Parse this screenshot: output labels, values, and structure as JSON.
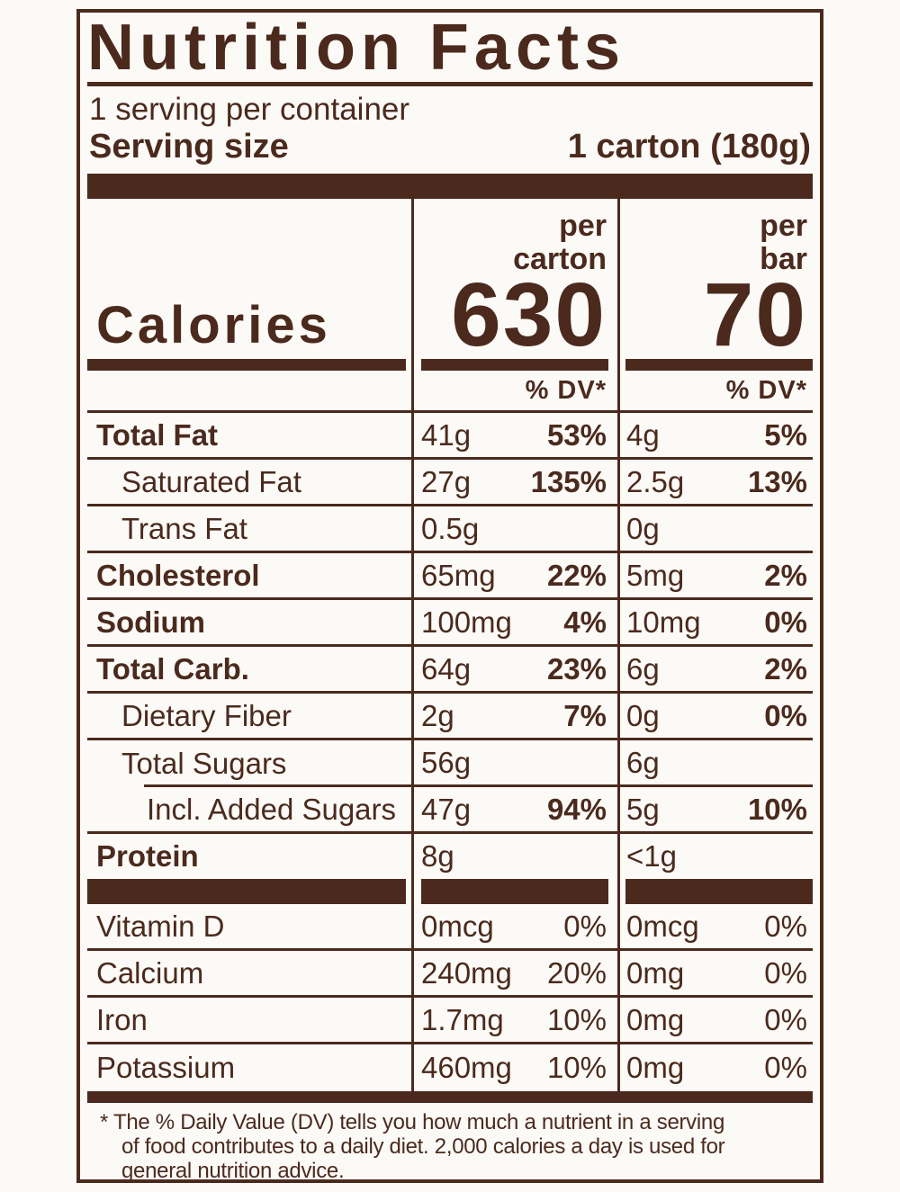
{
  "colors": {
    "text_brown": "#4B2A1D",
    "background": "#FCFAF7"
  },
  "header": {
    "title": "Nutrition Facts",
    "servings_per_container": "1 serving per container",
    "serving_size_label": "Serving size",
    "serving_size_value": "1 carton (180g)"
  },
  "calories": {
    "label": "Calories",
    "dv_header": "% DV*",
    "carton": {
      "unit_line1": "per",
      "unit_line2": "carton",
      "value": "630"
    },
    "bar": {
      "unit_line1": "per",
      "unit_line2": "bar",
      "value": "70"
    }
  },
  "nutrients": [
    {
      "name": "Total Fat",
      "bold": true,
      "indent": 0,
      "carton": {
        "amount": "41g",
        "dv": "53%"
      },
      "bar": {
        "amount": "4g",
        "dv": "5%"
      }
    },
    {
      "name": "Saturated Fat",
      "bold": false,
      "indent": 1,
      "carton": {
        "amount": "27g",
        "dv": "135%"
      },
      "bar": {
        "amount": "2.5g",
        "dv": "13%"
      }
    },
    {
      "name": "Trans Fat",
      "bold": false,
      "indent": 1,
      "carton": {
        "amount": "0.5g",
        "dv": ""
      },
      "bar": {
        "amount": "0g",
        "dv": ""
      }
    },
    {
      "name": "Cholesterol",
      "bold": true,
      "indent": 0,
      "carton": {
        "amount": "65mg",
        "dv": "22%"
      },
      "bar": {
        "amount": "5mg",
        "dv": "2%"
      }
    },
    {
      "name": "Sodium",
      "bold": true,
      "indent": 0,
      "carton": {
        "amount": "100mg",
        "dv": "4%"
      },
      "bar": {
        "amount": "10mg",
        "dv": "0%"
      }
    },
    {
      "name": "Total Carb.",
      "bold": true,
      "indent": 0,
      "carton": {
        "amount": "64g",
        "dv": "23%"
      },
      "bar": {
        "amount": "6g",
        "dv": "2%"
      }
    },
    {
      "name": "Dietary Fiber",
      "bold": false,
      "indent": 1,
      "carton": {
        "amount": "2g",
        "dv": "7%"
      },
      "bar": {
        "amount": "0g",
        "dv": "0%"
      }
    },
    {
      "name": "Total Sugars",
      "bold": false,
      "indent": 1,
      "carton": {
        "amount": "56g",
        "dv": ""
      },
      "bar": {
        "amount": "6g",
        "dv": ""
      }
    },
    {
      "name": "Incl. Added Sugars",
      "bold": false,
      "indent": 2,
      "carton": {
        "amount": "47g",
        "dv": "94%"
      },
      "bar": {
        "amount": "5g",
        "dv": "10%"
      }
    },
    {
      "name": "Protein",
      "bold": true,
      "indent": 0,
      "carton": {
        "amount": "8g",
        "dv": ""
      },
      "bar": {
        "amount": "<1g",
        "dv": ""
      }
    }
  ],
  "vitamins": [
    {
      "name": "Vitamin D",
      "carton": {
        "amount": "0mcg",
        "dv": "0%"
      },
      "bar": {
        "amount": "0mcg",
        "dv": "0%"
      }
    },
    {
      "name": "Calcium",
      "carton": {
        "amount": "240mg",
        "dv": "20%"
      },
      "bar": {
        "amount": "0mg",
        "dv": "0%"
      }
    },
    {
      "name": "Iron",
      "carton": {
        "amount": "1.7mg",
        "dv": "10%"
      },
      "bar": {
        "amount": "0mg",
        "dv": "0%"
      }
    },
    {
      "name": "Potassium",
      "carton": {
        "amount": "460mg",
        "dv": "10%"
      },
      "bar": {
        "amount": "0mg",
        "dv": "0%"
      }
    }
  ],
  "footnote": {
    "lines": [
      "* The % Daily Value (DV) tells you how much a nutrient in a serving",
      "of food contributes to a daily diet. 2,000 calories a day is used for",
      "general nutrition advice."
    ]
  }
}
